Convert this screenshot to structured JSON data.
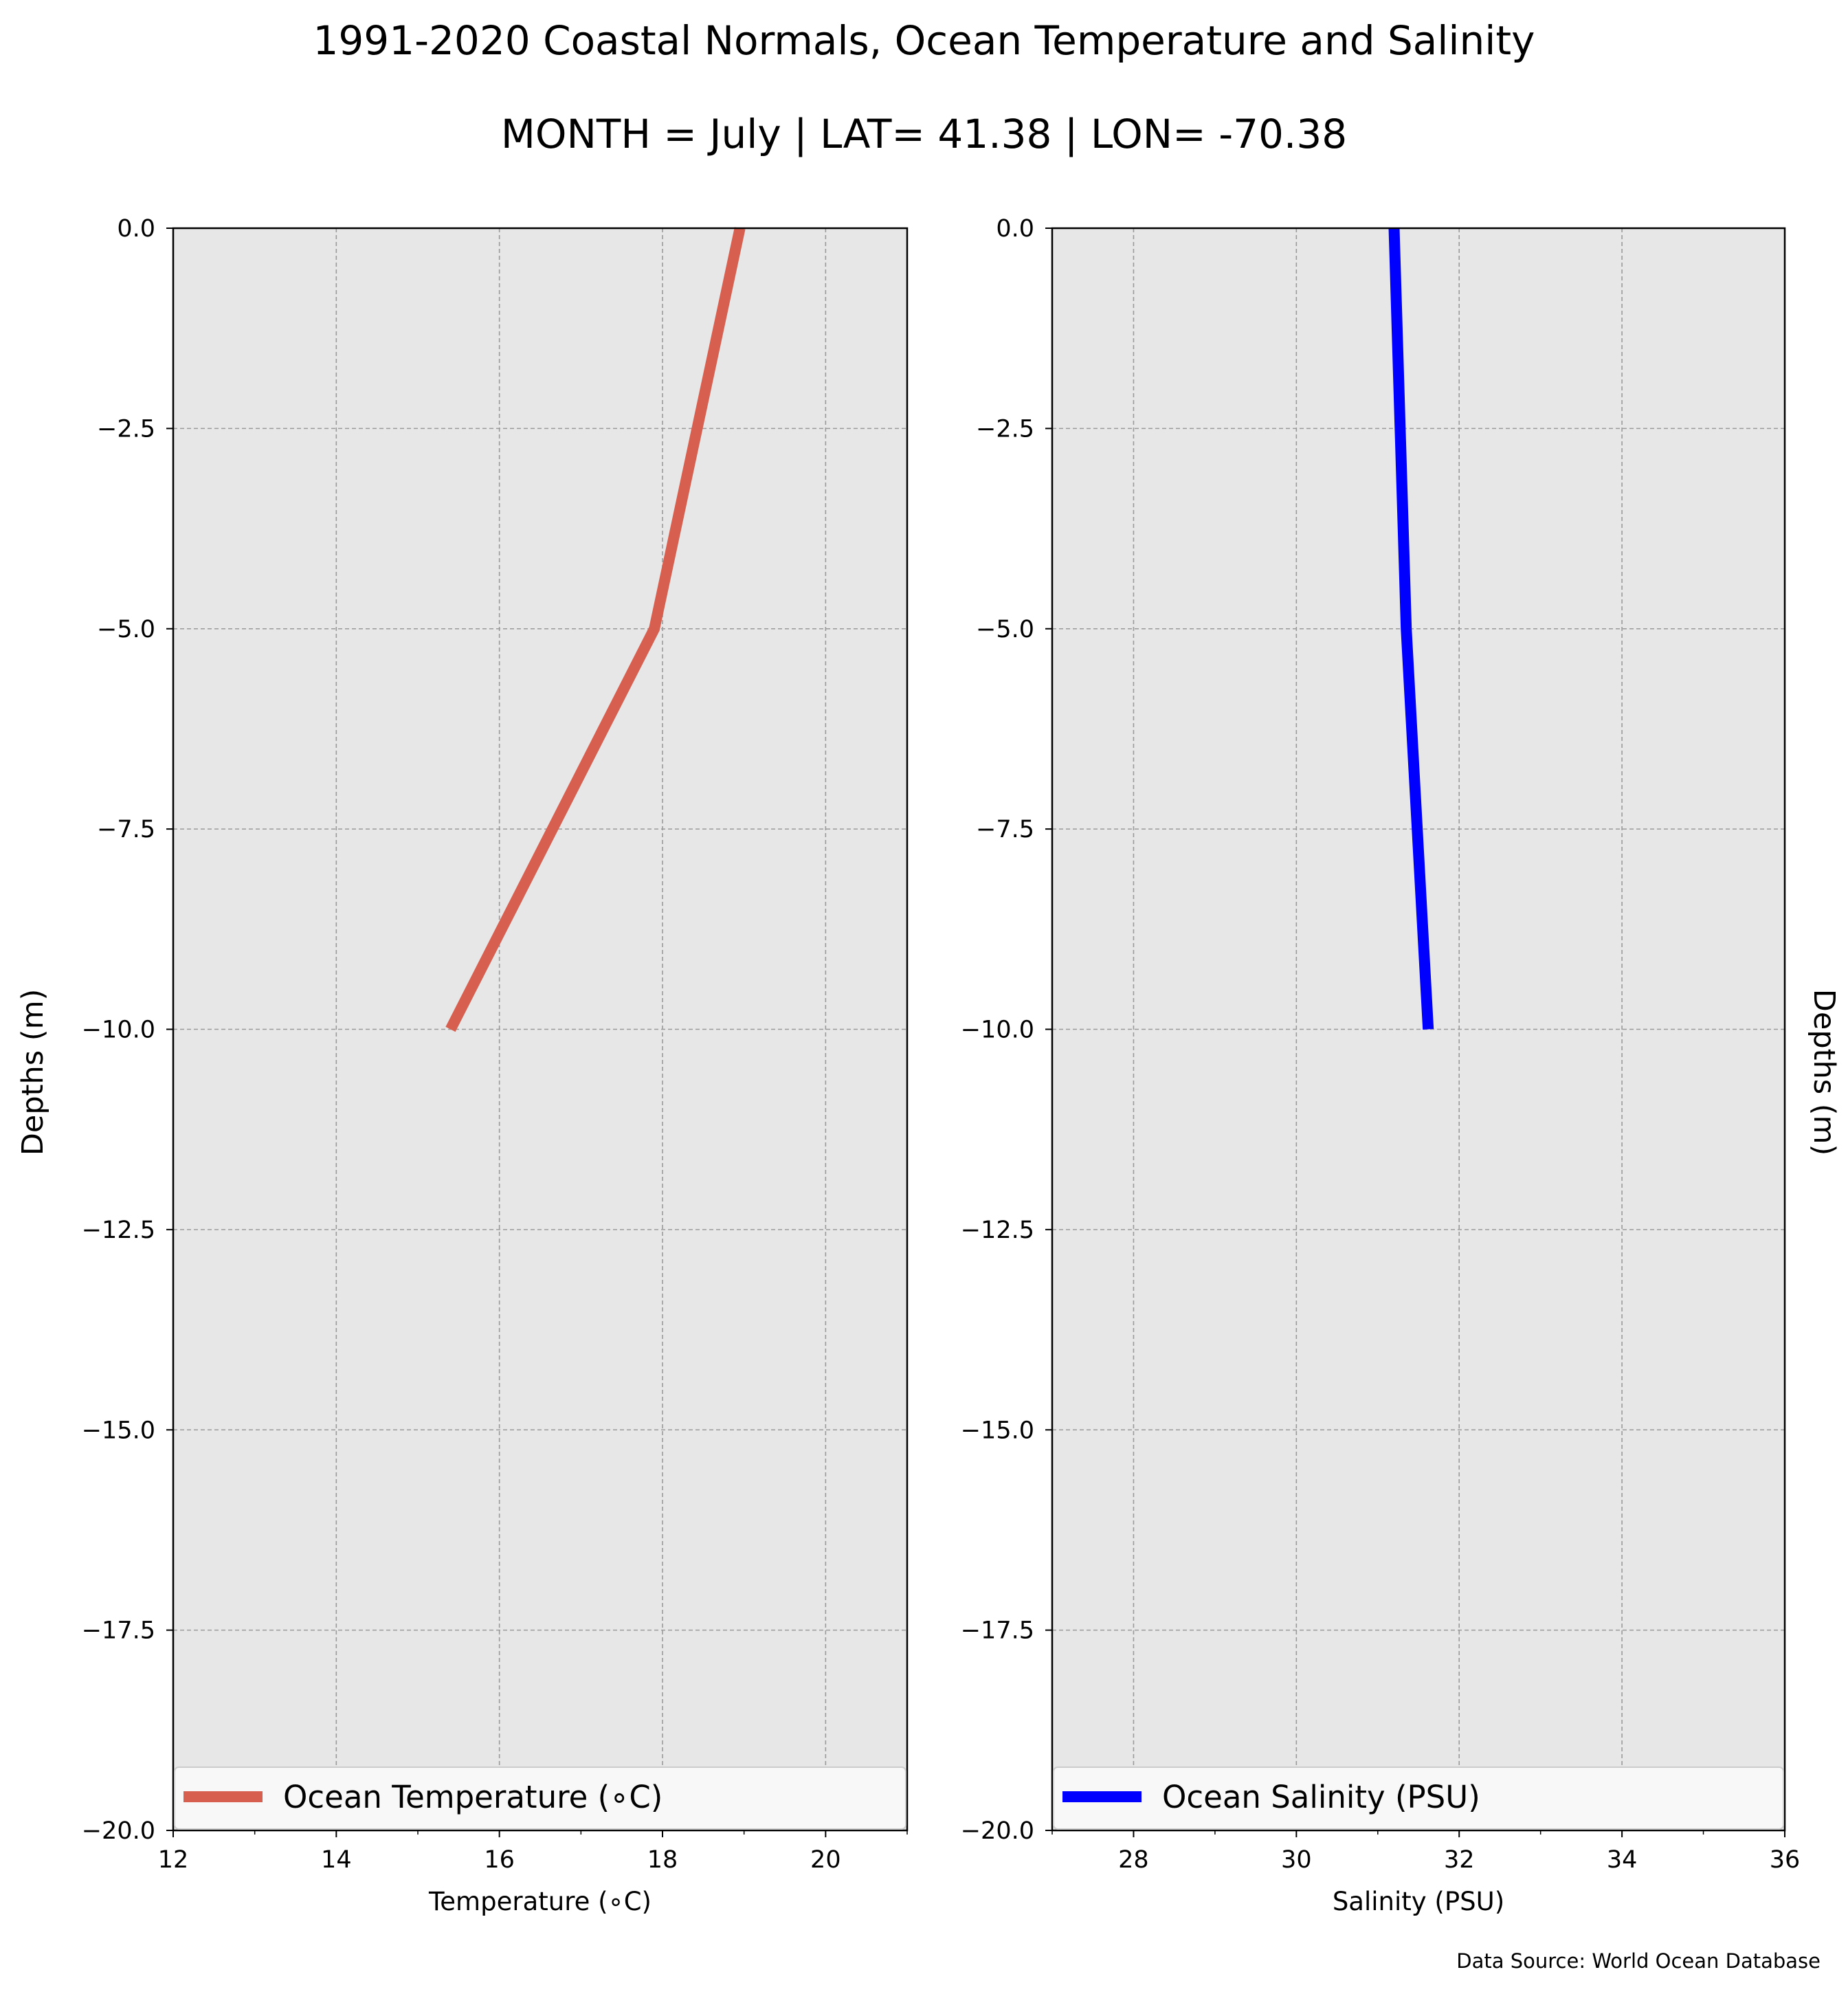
{
  "title": "1991-2020 Coastal Normals, Ocean Temperature and Salinity",
  "subtitle": "MONTH = July | LAT= 41.38 | LON= -70.38",
  "source_note": "Data Source: World Ocean Database",
  "colors": {
    "temperature": "#d65f4f",
    "salinity": "#0000ff",
    "panel_bg": "#e7e7e7",
    "grid": "#9a9a9a"
  },
  "chart_data": [
    {
      "type": "line",
      "xlabel": "Temperature ($^\\circ$C)",
      "xlabel_text": "Temperature (∘C)",
      "ylabel": "Depths (m)",
      "xlim": [
        12,
        21
      ],
      "ylim": [
        -20,
        0
      ],
      "xticks": [
        12,
        14,
        16,
        18,
        20
      ],
      "xtick_labels": [
        "12",
        "14",
        "16",
        "18",
        "20"
      ],
      "yticks": [
        0,
        -2.5,
        -5,
        -7.5,
        -10,
        -12.5,
        -15,
        -17.5,
        -20
      ],
      "ytick_labels": [
        "0.0",
        "−2.5",
        "−5.0",
        "−7.5",
        "−10.0",
        "−12.5",
        "−15.0",
        "−17.5",
        "−20.0"
      ],
      "grid": true,
      "legend_position": "bottom",
      "series": [
        {
          "name": "Ocean Temperature (∘C)",
          "x": [
            18.95,
            17.9,
            15.4
          ],
          "y": [
            0,
            -5,
            -10
          ]
        }
      ]
    },
    {
      "type": "line",
      "xlabel": "Salinity (PSU)",
      "ylabel": "Depths (m)",
      "xlim": [
        27,
        36
      ],
      "ylim": [
        -20,
        0
      ],
      "xticks": [
        28,
        30,
        32,
        34,
        36
      ],
      "xtick_labels": [
        "28",
        "30",
        "32",
        "34",
        "36"
      ],
      "yticks": [
        0,
        -2.5,
        -5,
        -7.5,
        -10,
        -12.5,
        -15,
        -17.5,
        -20
      ],
      "ytick_labels": [
        "0.0",
        "−2.5",
        "−5.0",
        "−7.5",
        "−10.0",
        "−12.5",
        "−15.0",
        "−17.5",
        "−20.0"
      ],
      "grid": true,
      "legend_position": "bottom",
      "series": [
        {
          "name": "Ocean Salinity (PSU)",
          "x": [
            31.2,
            31.35,
            31.62
          ],
          "y": [
            0,
            -5,
            -10
          ]
        }
      ]
    }
  ]
}
